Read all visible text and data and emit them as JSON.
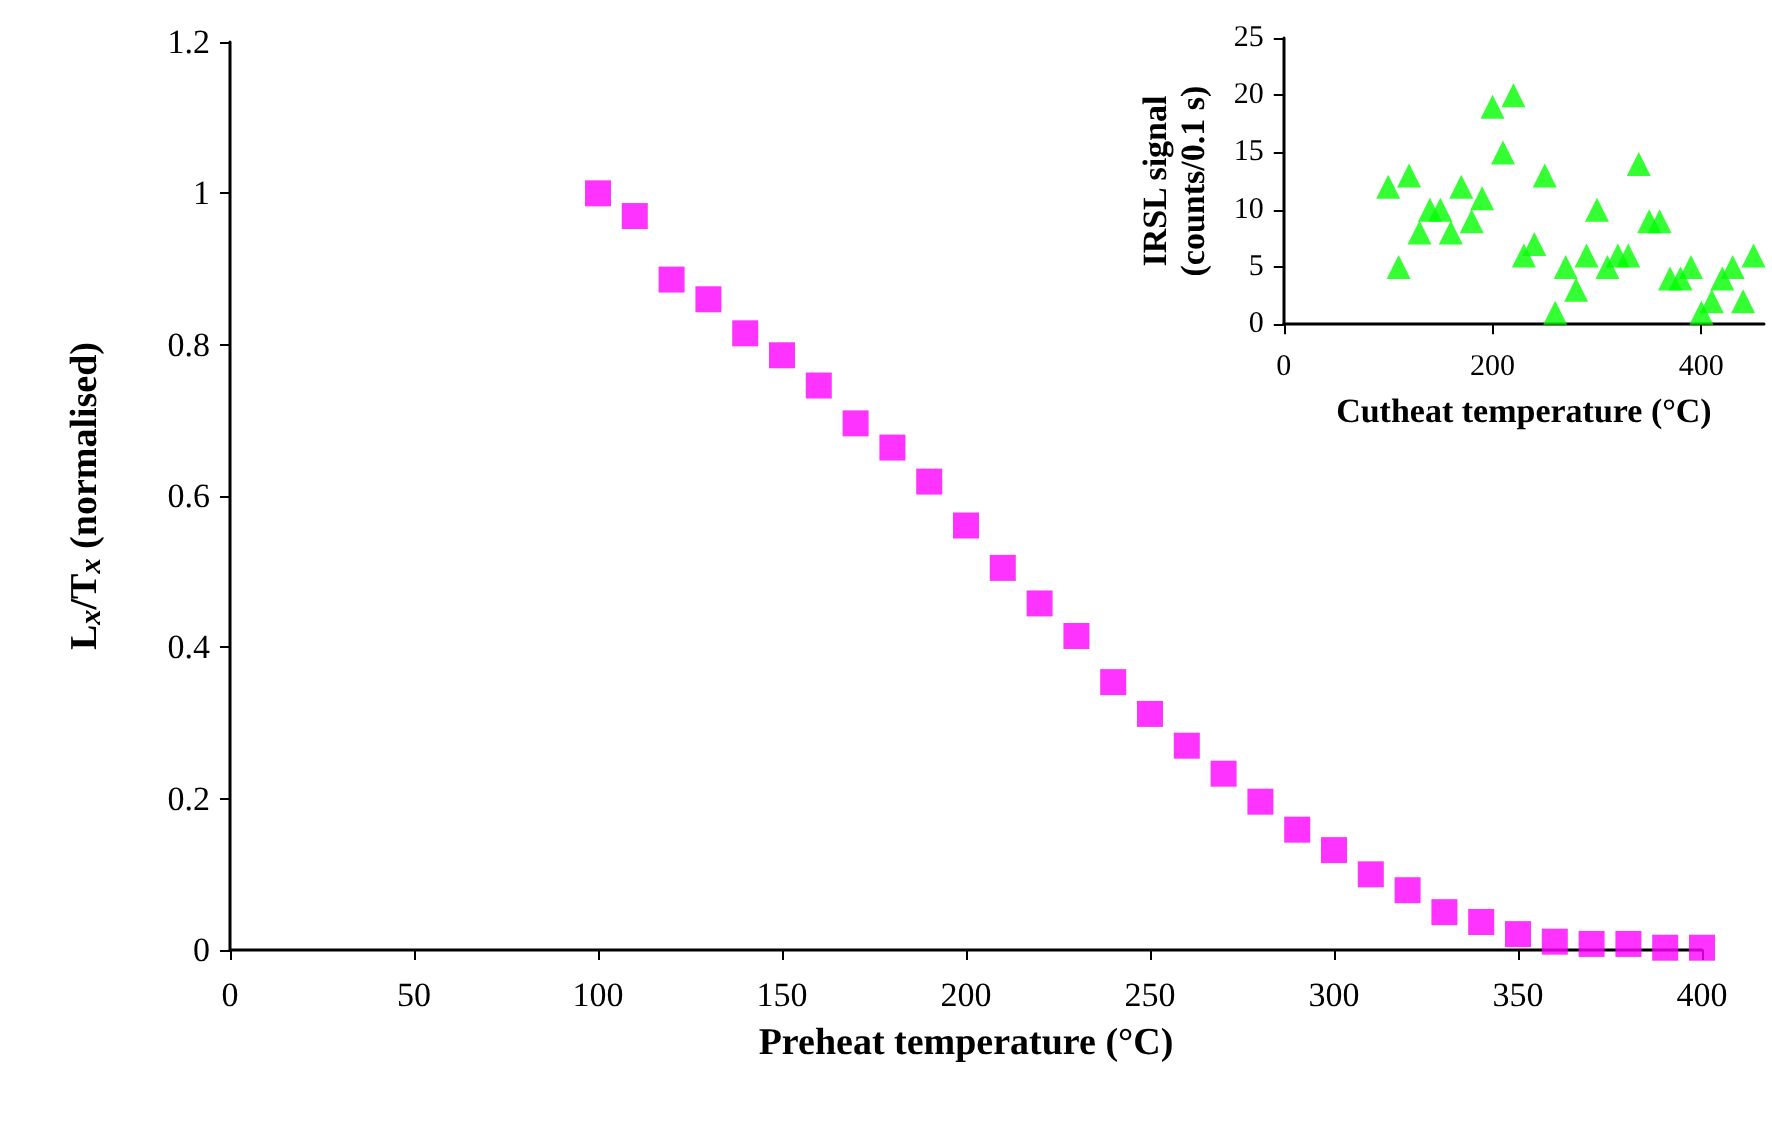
{
  "chart_data": [
    {
      "type": "scatter",
      "xlabel": "Preheat temperature (°C)",
      "ylabel": "L$_{x}$/T$_{x}$ (normalised)",
      "x": [
        100,
        110,
        120,
        130,
        140,
        150,
        160,
        170,
        180,
        190,
        200,
        210,
        220,
        230,
        240,
        250,
        260,
        270,
        280,
        290,
        300,
        310,
        320,
        330,
        340,
        350,
        360,
        370,
        380,
        390,
        400
      ],
      "series": [
        {
          "color": "#ff00ff",
          "values": [
            1.0,
            0.97,
            0.886,
            0.86,
            0.815,
            0.786,
            0.746,
            0.696,
            0.664,
            0.619,
            0.561,
            0.505,
            0.458,
            0.415,
            0.354,
            0.312,
            0.27,
            0.233,
            0.196,
            0.159,
            0.132,
            0.1,
            0.079,
            0.05,
            0.037,
            0.021,
            0.011,
            0.008,
            0.008,
            0.003,
            0.003
          ]
        }
      ],
      "xlim": [
        0,
        400
      ],
      "xticks": [
        0,
        50,
        100,
        150,
        200,
        250,
        300,
        350,
        400
      ],
      "ylim": [
        0,
        1.2
      ],
      "yticks": [
        0,
        0.2,
        0.4,
        0.6,
        0.8,
        1,
        1.2
      ],
      "marker": "square"
    },
    {
      "type": "scatter",
      "xlabel": "Cutheat temperature (°C)",
      "ylabel": "IRSL signal\n(counts/0.1 s)",
      "x": [
        100,
        110,
        120,
        130,
        140,
        150,
        160,
        170,
        180,
        190,
        200,
        210,
        220,
        230,
        240,
        250,
        260,
        270,
        280,
        290,
        300,
        310,
        320,
        330,
        340,
        350,
        360,
        370,
        380,
        390,
        400,
        410,
        420,
        430,
        440,
        450
      ],
      "series": [
        {
          "color": "#00ff00",
          "values": [
            12,
            5,
            13,
            8,
            10,
            10,
            8,
            12,
            9,
            11,
            19,
            15,
            20,
            6,
            7,
            13,
            1,
            5,
            3,
            6,
            10,
            5,
            6,
            6,
            14,
            9,
            9,
            4,
            4,
            5,
            1,
            2,
            4,
            5,
            2,
            6
          ]
        }
      ],
      "xlim": [
        0,
        460
      ],
      "xticks": [
        0,
        200,
        400
      ],
      "ylim": [
        0,
        25
      ],
      "yticks": [
        0,
        5,
        10,
        15,
        20,
        25
      ],
      "marker": "triangle"
    }
  ]
}
